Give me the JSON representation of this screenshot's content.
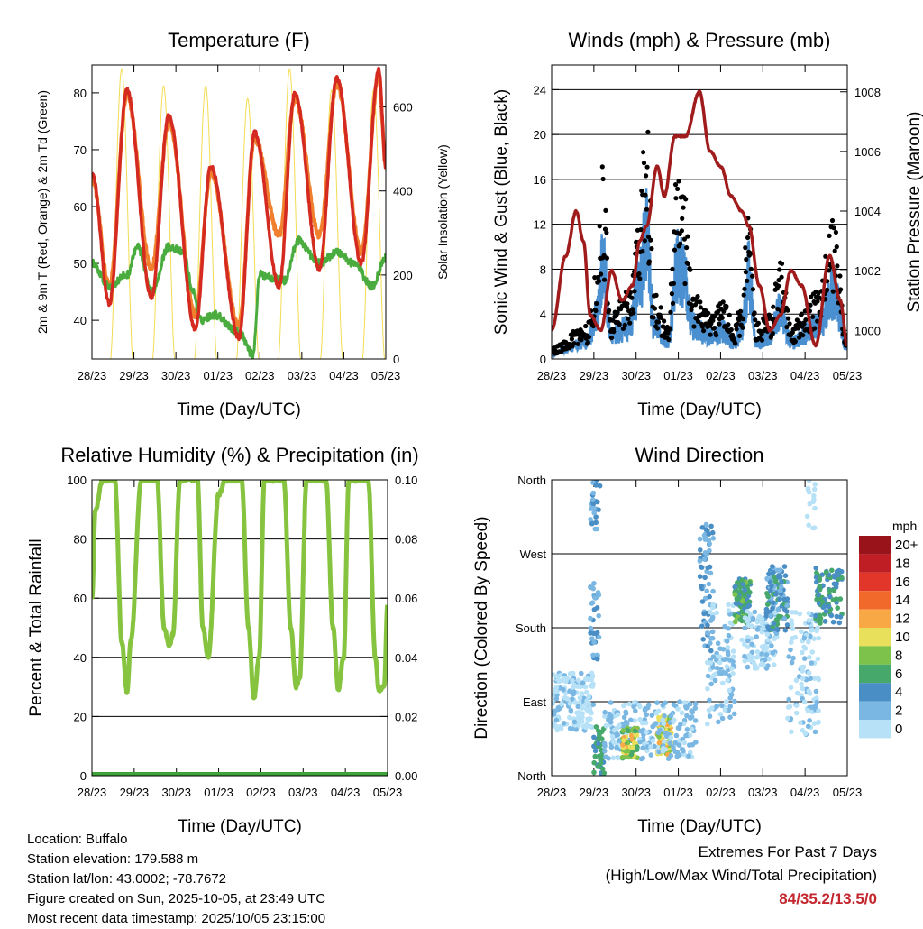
{
  "chart_data": [
    {
      "type": "line",
      "title": "Temperature (F)",
      "xlabel": "Time (Day/UTC)",
      "ylabel": "2m & 9m T (Red, Orange) & 2m Td (Green)",
      "y2label": "Solar Insolation (Yellow)",
      "xlim": [
        0,
        168
      ],
      "xticks": [
        "28/23",
        "29/23",
        "30/23",
        "01/23",
        "02/23",
        "03/23",
        "04/23",
        "05/23"
      ],
      "ylim": [
        33.2,
        84.9
      ],
      "yticks": [
        40,
        50,
        60,
        70,
        80
      ],
      "y2lim": [
        0,
        700
      ],
      "y2ticks": [
        0,
        200,
        400,
        600
      ],
      "grid": false,
      "series": [
        {
          "name": "2m T",
          "color": "#d42a20",
          "points": [
            [
              0,
              66
            ],
            [
              10,
              43
            ],
            [
              20,
              80.5
            ],
            [
              34,
              44
            ],
            [
              44,
              76
            ],
            [
              59,
              38.5
            ],
            [
              68,
              67
            ],
            [
              84,
              37
            ],
            [
              93,
              73
            ],
            [
              107,
              46
            ],
            [
              116,
              80
            ],
            [
              130,
              49
            ],
            [
              140,
              82.5
            ],
            [
              154,
              50
            ],
            [
              164,
              84
            ],
            [
              168,
              67
            ]
          ]
        },
        {
          "name": "9m T",
          "color": "#f07f2e",
          "points": [
            [
              0,
              65
            ],
            [
              10,
              46
            ],
            [
              20,
              79.5
            ],
            [
              34,
              49
            ],
            [
              44,
              75
            ],
            [
              59,
              41
            ],
            [
              68,
              66
            ],
            [
              84,
              39
            ],
            [
              93,
              72
            ],
            [
              107,
              55
            ],
            [
              116,
              79
            ],
            [
              130,
              55
            ],
            [
              140,
              81.5
            ],
            [
              154,
              52
            ],
            [
              164,
              83
            ],
            [
              168,
              67
            ]
          ]
        },
        {
          "name": "2m Td",
          "color": "#4aac3e",
          "points": [
            [
              0,
              50
            ],
            [
              10,
              46
            ],
            [
              20,
              48
            ],
            [
              26,
              53
            ],
            [
              34,
              45
            ],
            [
              44,
              53
            ],
            [
              52,
              52
            ],
            [
              58,
              45
            ],
            [
              62,
              40
            ],
            [
              70,
              41
            ],
            [
              84,
              38
            ],
            [
              92,
              34
            ],
            [
              96,
              48
            ],
            [
              110,
              47
            ],
            [
              118,
              54
            ],
            [
              130,
              50
            ],
            [
              140,
              52
            ],
            [
              150,
              50
            ],
            [
              160,
              46
            ],
            [
              168,
              51
            ]
          ]
        },
        {
          "name": "Solar Insolation",
          "color": "#f3dc52",
          "axis": "right",
          "daily_peak_hour": 17,
          "daily_peaks": [
            690,
            650,
            650,
            620,
            690,
            640,
            640
          ]
        }
      ]
    },
    {
      "type": "line",
      "title": "Winds (mph) & Pressure (mb)",
      "xlabel": "Time (Day/UTC)",
      "ylabel": "Sonic Wind & Gust (Blue, Black)",
      "y2label": "Station Pressure (Maroon)",
      "xlim": [
        0,
        168
      ],
      "xticks": [
        "28/23",
        "29/23",
        "30/23",
        "01/23",
        "02/23",
        "03/23",
        "04/23",
        "05/23"
      ],
      "ylim": [
        0,
        26.2
      ],
      "yticks": [
        0,
        4,
        8,
        12,
        16,
        20,
        24
      ],
      "y2lim": [
        999.04,
        1008.9
      ],
      "y2ticks": [
        1000,
        1002,
        1004,
        1006,
        1008
      ],
      "grid": true,
      "series": [
        {
          "name": "Gust",
          "color": "#000000",
          "style": "scatter",
          "points": [
            [
              0,
              1
            ],
            [
              20,
              3
            ],
            [
              26,
              8
            ],
            [
              29,
              17
            ],
            [
              34,
              4
            ],
            [
              44,
              6
            ],
            [
              50,
              14
            ],
            [
              54,
              22
            ],
            [
              58,
              6
            ],
            [
              66,
              3
            ],
            [
              72,
              18
            ],
            [
              76,
              14
            ],
            [
              80,
              6
            ],
            [
              90,
              4
            ],
            [
              98,
              5
            ],
            [
              104,
              3
            ],
            [
              108,
              5
            ],
            [
              112,
              15
            ],
            [
              116,
              3
            ],
            [
              124,
              4
            ],
            [
              130,
              9
            ],
            [
              136,
              3
            ],
            [
              152,
              6
            ],
            [
              160,
              12
            ],
            [
              168,
              2
            ]
          ]
        },
        {
          "name": "Sonic Wind",
          "color": "#4a90d0",
          "ratio_of_gust": 0.55
        },
        {
          "name": "Station Pressure",
          "color": "#a01c1c",
          "axis": "right",
          "points": [
            [
              0,
              1000
            ],
            [
              8,
              1002.5
            ],
            [
              14,
              1004
            ],
            [
              18,
              1003
            ],
            [
              22,
              1000.5
            ],
            [
              28,
              1000
            ],
            [
              34,
              1002
            ],
            [
              40,
              1001
            ],
            [
              46,
              1001.5
            ],
            [
              50,
              1003
            ],
            [
              54,
              1003.5
            ],
            [
              60,
              1005.5
            ],
            [
              64,
              1004.5
            ],
            [
              70,
              1006.5
            ],
            [
              76,
              1006.5
            ],
            [
              84,
              1008
            ],
            [
              90,
              1006
            ],
            [
              96,
              1005.5
            ],
            [
              102,
              1004.5
            ],
            [
              108,
              1004
            ],
            [
              112,
              1003.5
            ],
            [
              118,
              1001.5
            ],
            [
              124,
              1000
            ],
            [
              130,
              1000.5
            ],
            [
              136,
              1002
            ],
            [
              142,
              1001.5
            ],
            [
              150,
              999.5
            ],
            [
              158,
              1002.5
            ],
            [
              164,
              1001
            ],
            [
              168,
              999.5
            ]
          ]
        }
      ]
    },
    {
      "type": "line",
      "title": "Relative Humidity (%) & Precipitation (in)",
      "xlabel": "Time (Day/UTC)",
      "ylabel": "Percent & Total Rainfall",
      "xlim": [
        0,
        168
      ],
      "xticks": [
        "28/23",
        "29/23",
        "30/23",
        "01/23",
        "02/23",
        "03/23",
        "04/23",
        "05/23"
      ],
      "ylim": [
        0,
        100
      ],
      "yticks": [
        0,
        20,
        40,
        60,
        80,
        100
      ],
      "y2lim": [
        0,
        0.1
      ],
      "y2ticks": [
        "0.00",
        "0.02",
        "0.04",
        "0.06",
        "0.08",
        "0.10"
      ],
      "grid": true,
      "series": [
        {
          "name": "Relative Humidity",
          "color": "#86c440",
          "points": [
            [
              0,
              60
            ],
            [
              2,
              90
            ],
            [
              6,
              100
            ],
            [
              13,
              100
            ],
            [
              17,
              45
            ],
            [
              20,
              28
            ],
            [
              22,
              45
            ],
            [
              28,
              100
            ],
            [
              37,
              100
            ],
            [
              41,
              50
            ],
            [
              44,
              44
            ],
            [
              46,
              48
            ],
            [
              50,
              100
            ],
            [
              60,
              100
            ],
            [
              63,
              50
            ],
            [
              66,
              40
            ],
            [
              72,
              95
            ],
            [
              76,
              100
            ],
            [
              85,
              100
            ],
            [
              89,
              50
            ],
            [
              92,
              26
            ],
            [
              95,
              40
            ],
            [
              98,
              100
            ],
            [
              109,
              100
            ],
            [
              113,
              50
            ],
            [
              116,
              30
            ],
            [
              118,
              33
            ],
            [
              122,
              100
            ],
            [
              133,
              100
            ],
            [
              137,
              50
            ],
            [
              140,
              29
            ],
            [
              143,
              40
            ],
            [
              146,
              100
            ],
            [
              157,
              100
            ],
            [
              161,
              40
            ],
            [
              163,
              29
            ],
            [
              166,
              30
            ],
            [
              168,
              58
            ]
          ]
        },
        {
          "name": "Total Rainfall",
          "color": "#3fa33a",
          "points": [
            [
              0,
              0
            ],
            [
              168,
              0
            ]
          ]
        }
      ]
    },
    {
      "type": "scatter",
      "title": "Wind Direction",
      "xlabel": "Time (Day/UTC)",
      "ylabel": "Direction (Colored By Speed)",
      "xlim": [
        0,
        168
      ],
      "xticks": [
        "28/23",
        "29/23",
        "30/23",
        "01/23",
        "02/23",
        "03/23",
        "04/23",
        "05/23"
      ],
      "ylim": [
        0,
        360
      ],
      "yticks": [
        {
          "v": 0,
          "label": "North"
        },
        {
          "v": 90,
          "label": "East"
        },
        {
          "v": 180,
          "label": "South"
        },
        {
          "v": 270,
          "label": "West"
        },
        {
          "v": 360,
          "label": "North"
        }
      ],
      "grid": true,
      "clusters": [
        {
          "h": [
            0,
            24
          ],
          "dir": [
            55,
            125
          ],
          "speed": [
            0,
            3
          ],
          "n": 160
        },
        {
          "h": [
            22,
            27
          ],
          "dir": [
            140,
            235
          ],
          "speed": [
            2,
            5
          ],
          "n": 40
        },
        {
          "h": [
            22,
            28
          ],
          "dir": [
            300,
            360
          ],
          "speed": [
            2,
            6
          ],
          "n": 25
        },
        {
          "h": [
            24,
            30
          ],
          "dir": [
            0,
            60
          ],
          "speed": [
            5,
            8
          ],
          "n": 45
        },
        {
          "h": [
            30,
            50
          ],
          "dir": [
            20,
            90
          ],
          "speed": [
            1,
            4
          ],
          "n": 90
        },
        {
          "h": [
            40,
            49
          ],
          "dir": [
            20,
            60
          ],
          "speed": [
            7,
            13
          ],
          "n": 70
        },
        {
          "h": [
            60,
            68
          ],
          "dir": [
            25,
            75
          ],
          "speed": [
            8,
            13
          ],
          "n": 80
        },
        {
          "h": [
            50,
            82
          ],
          "dir": [
            20,
            90
          ],
          "speed": [
            1,
            4
          ],
          "n": 140
        },
        {
          "h": [
            84,
            92
          ],
          "dir": [
            150,
            310
          ],
          "speed": [
            3,
            5
          ],
          "n": 60
        },
        {
          "h": [
            88,
            104
          ],
          "dir": [
            60,
            210
          ],
          "speed": [
            1,
            4
          ],
          "n": 110
        },
        {
          "h": [
            104,
            113
          ],
          "dir": [
            185,
            240
          ],
          "speed": [
            5,
            9
          ],
          "n": 90
        },
        {
          "h": [
            108,
            128
          ],
          "dir": [
            130,
            200
          ],
          "speed": [
            0,
            3
          ],
          "n": 110
        },
        {
          "h": [
            122,
            134
          ],
          "dir": [
            175,
            255
          ],
          "speed": [
            3,
            7
          ],
          "n": 110
        },
        {
          "h": [
            134,
            152
          ],
          "dir": [
            50,
            200
          ],
          "speed": [
            0,
            3
          ],
          "n": 110
        },
        {
          "h": [
            150,
            165
          ],
          "dir": [
            185,
            255
          ],
          "speed": [
            4,
            8
          ],
          "n": 90
        },
        {
          "h": [
            145,
            150
          ],
          "dir": [
            300,
            360
          ],
          "speed": [
            0,
            2
          ],
          "n": 15
        }
      ],
      "colorbar": {
        "unit": "mph",
        "labels": [
          "20+",
          "18",
          "16",
          "14",
          "12",
          "10",
          "8",
          "6",
          "4",
          "2",
          "0"
        ],
        "colors": [
          "#98141a",
          "#bf1e24",
          "#e2362a",
          "#f26a2b",
          "#f8a845",
          "#e8e05a",
          "#7dc24b",
          "#46a86a",
          "#4a8ec6",
          "#7ab7e2",
          "#b6e1f7"
        ]
      }
    }
  ],
  "info": {
    "location": "Location: Buffalo",
    "elevation": "Station elevation: 179.588 m",
    "latlon": "Station lat/lon: 43.0002; -78.7672",
    "created": "Figure created on Sun, 2025-10-05, at 23:49 UTC",
    "recent": "Most recent data timestamp: 2025/10/05 23:15:00"
  },
  "extremes": {
    "title": "Extremes For Past 7 Days",
    "subtitle": "(High/Low/Max Wind/Total Precipitation)",
    "values": "84/35.2/13.5/0"
  }
}
